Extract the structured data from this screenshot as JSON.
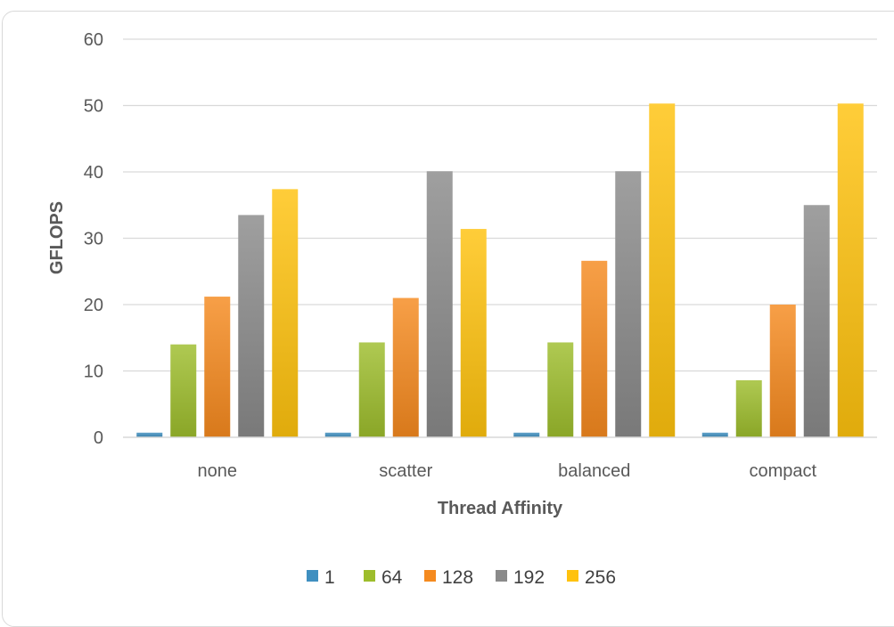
{
  "chart_data": {
    "type": "bar",
    "title": "",
    "xlabel": "Thread Affinity",
    "ylabel": "GFLOPS",
    "categories": [
      "none",
      "scatter",
      "balanced",
      "compact"
    ],
    "ylim": [
      0,
      60
    ],
    "yticks": [
      0,
      10,
      20,
      30,
      40,
      50,
      60
    ],
    "grid": true,
    "legend_position": "bottom",
    "series": [
      {
        "name": "1",
        "values": [
          0.7,
          0.7,
          0.7,
          0.7
        ],
        "color": "#3f8fc0"
      },
      {
        "name": "64",
        "values": [
          14.0,
          14.3,
          14.3,
          8.6
        ],
        "color": "#9dbd2c"
      },
      {
        "name": "128",
        "values": [
          21.2,
          21.0,
          26.6,
          20.0
        ],
        "color": "#f58a1f"
      },
      {
        "name": "192",
        "values": [
          33.5,
          40.1,
          40.1,
          35.0
        ],
        "color": "#8a8a8a"
      },
      {
        "name": "256",
        "values": [
          37.4,
          31.4,
          50.3,
          50.3
        ],
        "color": "#ffc20e"
      }
    ]
  }
}
